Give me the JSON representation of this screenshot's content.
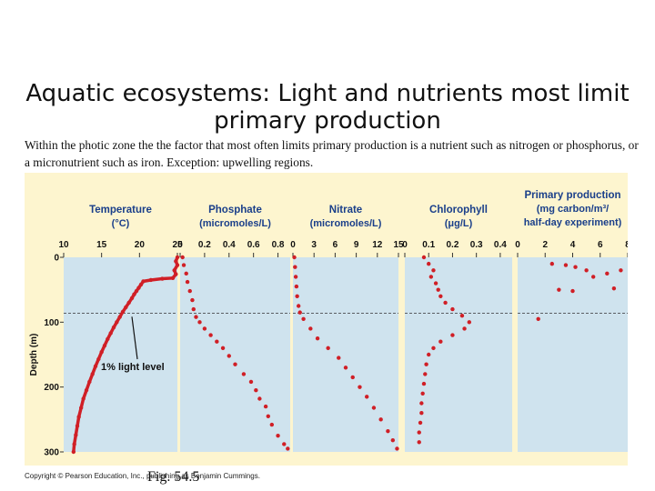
{
  "slide": {
    "title": "Aquatic ecosystems: Light and nutrients most limit primary production",
    "caption": "Within the photic zone the the factor that most often limits primary production is a nutrient such as nitrogen or phosphorus, or a micronutrient such as iron.  Exception: upwelling regions.",
    "copyright": "Copyright © Pearson Education, Inc., publishing as Benjamin Cummings.",
    "fig_label": "Fig. 54.5"
  },
  "colors": {
    "background": "#fdf5cf",
    "panel": "#cfe3ee",
    "series": "#d01f26",
    "header": "#1a3f8a",
    "text": "#111111"
  },
  "chart_data": {
    "type": "scatter",
    "ylabel": "Depth (m)",
    "ylim": [
      300,
      0
    ],
    "yticks": [
      0,
      100,
      200,
      300
    ],
    "light_level": {
      "label": "1% light level",
      "depth": 86
    },
    "panels": [
      {
        "id": "temperature",
        "header": [
          "Temperature",
          "(°C)"
        ],
        "xlim": [
          10,
          25
        ],
        "xticks": [
          "10",
          "15",
          "20",
          "25"
        ],
        "points": [
          [
            25,
            0
          ],
          [
            24.8,
            6
          ],
          [
            25,
            12
          ],
          [
            24.6,
            20
          ],
          [
            24.8,
            26
          ],
          [
            24.4,
            32
          ],
          [
            23,
            33
          ],
          [
            21.5,
            35
          ],
          [
            20.5,
            37
          ],
          [
            20.2,
            42
          ],
          [
            19.9,
            47
          ],
          [
            19.6,
            52
          ],
          [
            19.3,
            57
          ],
          [
            19,
            63
          ],
          [
            18.6,
            70
          ],
          [
            18.2,
            77
          ],
          [
            17.8,
            84
          ],
          [
            17.4,
            92
          ],
          [
            17,
            100
          ],
          [
            16.6,
            108
          ],
          [
            16.2,
            117
          ],
          [
            15.8,
            126
          ],
          [
            15.4,
            136
          ],
          [
            15,
            146
          ],
          [
            14.6,
            157
          ],
          [
            14.2,
            168
          ],
          [
            13.8,
            180
          ],
          [
            13.4,
            192
          ],
          [
            13,
            205
          ],
          [
            12.6,
            218
          ],
          [
            12.3,
            232
          ],
          [
            12,
            246
          ],
          [
            11.8,
            260
          ],
          [
            11.6,
            274
          ],
          [
            11.4,
            288
          ],
          [
            11.3,
            300
          ]
        ]
      },
      {
        "id": "phosphate",
        "header": [
          "Phosphate",
          "(micromoles/L)"
        ],
        "xlim": [
          0,
          0.9
        ],
        "xticks": [
          "0",
          "0.2",
          "0.4",
          "0.6",
          "0.8"
        ],
        "points": [
          [
            0.02,
            0
          ],
          [
            0.03,
            12
          ],
          [
            0.05,
            25
          ],
          [
            0.06,
            38
          ],
          [
            0.08,
            52
          ],
          [
            0.1,
            66
          ],
          [
            0.11,
            80
          ],
          [
            0.13,
            92
          ],
          [
            0.16,
            100
          ],
          [
            0.2,
            110
          ],
          [
            0.25,
            120
          ],
          [
            0.3,
            130
          ],
          [
            0.35,
            140
          ],
          [
            0.4,
            152
          ],
          [
            0.45,
            165
          ],
          [
            0.52,
            180
          ],
          [
            0.58,
            192
          ],
          [
            0.62,
            205
          ],
          [
            0.65,
            218
          ],
          [
            0.7,
            230
          ],
          [
            0.72,
            245
          ],
          [
            0.75,
            258
          ],
          [
            0.8,
            275
          ],
          [
            0.85,
            288
          ],
          [
            0.88,
            295
          ]
        ]
      },
      {
        "id": "nitrate",
        "header": [
          "Nitrate",
          "(micromoles/L)"
        ],
        "xlim": [
          0,
          15
        ],
        "xticks": [
          "0",
          "3",
          "6",
          "9",
          "12",
          "15"
        ],
        "points": [
          [
            0.2,
            0
          ],
          [
            0.3,
            15
          ],
          [
            0.4,
            30
          ],
          [
            0.5,
            45
          ],
          [
            0.6,
            60
          ],
          [
            0.8,
            75
          ],
          [
            1,
            85
          ],
          [
            1.5,
            95
          ],
          [
            2.5,
            110
          ],
          [
            3.5,
            125
          ],
          [
            5,
            140
          ],
          [
            6.5,
            155
          ],
          [
            7.5,
            170
          ],
          [
            8.5,
            185
          ],
          [
            9.5,
            200
          ],
          [
            10.5,
            215
          ],
          [
            11.5,
            232
          ],
          [
            12.5,
            250
          ],
          [
            13.5,
            268
          ],
          [
            14.2,
            282
          ],
          [
            14.8,
            295
          ]
        ]
      },
      {
        "id": "chlorophyll",
        "header": [
          "Chlorophyll",
          "(μg/L)"
        ],
        "xlim": [
          0,
          0.45
        ],
        "xticks": [
          "0",
          "0.1",
          "0.2",
          "0.3",
          "0.4"
        ],
        "points": [
          [
            0.08,
            0
          ],
          [
            0.1,
            10
          ],
          [
            0.12,
            20
          ],
          [
            0.11,
            30
          ],
          [
            0.13,
            40
          ],
          [
            0.14,
            50
          ],
          [
            0.15,
            60
          ],
          [
            0.17,
            70
          ],
          [
            0.2,
            80
          ],
          [
            0.24,
            90
          ],
          [
            0.27,
            100
          ],
          [
            0.25,
            110
          ],
          [
            0.2,
            120
          ],
          [
            0.15,
            130
          ],
          [
            0.12,
            140
          ],
          [
            0.1,
            150
          ],
          [
            0.09,
            165
          ],
          [
            0.085,
            180
          ],
          [
            0.08,
            195
          ],
          [
            0.075,
            210
          ],
          [
            0.07,
            225
          ],
          [
            0.07,
            240
          ],
          [
            0.065,
            255
          ],
          [
            0.06,
            270
          ],
          [
            0.06,
            285
          ]
        ]
      },
      {
        "id": "primary_production",
        "header": [
          "Primary production",
          "(mg carbon/m³/",
          "half-day experiment)"
        ],
        "xlim": [
          0,
          8
        ],
        "xticks": [
          "0",
          "2",
          "4",
          "6",
          "8"
        ],
        "points": [
          [
            2.5,
            10
          ],
          [
            3.5,
            12
          ],
          [
            4.2,
            15
          ],
          [
            5,
            20
          ],
          [
            6.5,
            25
          ],
          [
            7.5,
            20
          ],
          [
            5.5,
            30
          ],
          [
            3,
            50
          ],
          [
            4,
            52
          ],
          [
            7,
            48
          ],
          [
            1.5,
            95
          ]
        ]
      }
    ]
  }
}
